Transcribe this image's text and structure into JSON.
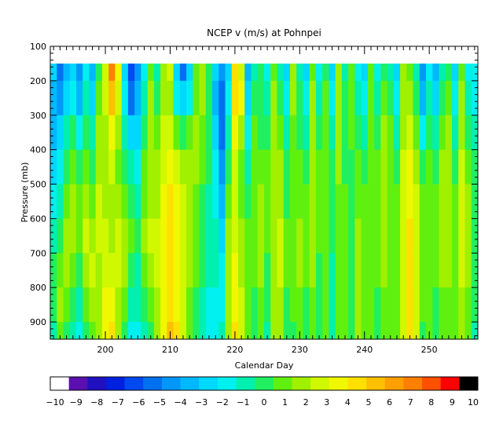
{
  "chart_data": {
    "type": "heatmap",
    "title": "NCEP v (m/s) at Pohnpei",
    "xlabel": "Calendar Day",
    "ylabel": "Pressure (mb)",
    "xlim": [
      191.5,
      257.5
    ],
    "ylim": [
      100,
      950
    ],
    "y_inverted": true,
    "data_top_pressure": 150,
    "x_ticks": [
      200,
      210,
      220,
      230,
      240,
      250
    ],
    "y_ticks": [
      100,
      200,
      300,
      400,
      500,
      600,
      700,
      800,
      900
    ],
    "grid": false,
    "colorbar": {
      "orientation": "horizontal",
      "placement": "bottom",
      "range": [
        -10,
        10
      ],
      "ticks": [
        -10,
        -9,
        -8,
        -7,
        -6,
        -5,
        -4,
        -3,
        -2,
        -1,
        0,
        1,
        2,
        3,
        4,
        5,
        6,
        7,
        8,
        9,
        10
      ],
      "colors": [
        "#ffffff",
        "#5a10b0",
        "#2010c0",
        "#0020e0",
        "#0048f0",
        "#0070f0",
        "#0098f8",
        "#00b8ff",
        "#00d8ff",
        "#00f0f0",
        "#00f0b0",
        "#20f060",
        "#60f010",
        "#a0f000",
        "#d0f800",
        "#f0f800",
        "#ffe000",
        "#ffc000",
        "#ffa000",
        "#ff8000",
        "#ff5000",
        "#ff0000",
        "#000000"
      ]
    },
    "columns": [
      {
        "day": 192,
        "v": [
          -3,
          -4,
          -4,
          -3,
          -2,
          -1,
          0,
          0,
          -1
        ]
      },
      {
        "day": 193,
        "v": [
          -6,
          -5,
          -3,
          -2,
          -1,
          0,
          1,
          2,
          1
        ]
      },
      {
        "day": 194,
        "v": [
          -4,
          -3,
          -1,
          0,
          1,
          2,
          2,
          1,
          0
        ]
      },
      {
        "day": 195,
        "v": [
          -3,
          -2,
          0,
          1,
          2,
          2,
          1,
          0,
          -1
        ]
      },
      {
        "day": 196,
        "v": [
          -5,
          -4,
          -2,
          0,
          1,
          1,
          0,
          -1,
          -2
        ]
      },
      {
        "day": 197,
        "v": [
          -2,
          -1,
          0,
          1,
          2,
          3,
          2,
          1,
          0
        ]
      },
      {
        "day": 198,
        "v": [
          -4,
          -3,
          -1,
          0,
          1,
          2,
          3,
          2,
          1
        ]
      },
      {
        "day": 199,
        "v": [
          0,
          1,
          2,
          2,
          3,
          3,
          2,
          2,
          2
        ]
      },
      {
        "day": 200,
        "v": [
          3,
          3,
          2,
          2,
          2,
          3,
          3,
          4,
          4
        ]
      },
      {
        "day": 201,
        "v": [
          8,
          6,
          4,
          3,
          2,
          2,
          3,
          4,
          5
        ]
      },
      {
        "day": 202,
        "v": [
          4,
          3,
          2,
          1,
          2,
          3,
          3,
          2,
          2
        ]
      },
      {
        "day": 203,
        "v": [
          -3,
          -2,
          -1,
          0,
          1,
          2,
          2,
          1,
          0
        ]
      },
      {
        "day": 204,
        "v": [
          -7,
          -6,
          -3,
          -1,
          0,
          1,
          0,
          -1,
          -2
        ]
      },
      {
        "day": 205,
        "v": [
          -5,
          -4,
          -3,
          -2,
          -1,
          0,
          -1,
          -1,
          -2
        ]
      },
      {
        "day": 206,
        "v": [
          -2,
          -1,
          0,
          1,
          1,
          2,
          1,
          0,
          -1
        ]
      },
      {
        "day": 207,
        "v": [
          1,
          2,
          2,
          2,
          2,
          3,
          2,
          1,
          0
        ]
      },
      {
        "day": 208,
        "v": [
          -1,
          0,
          1,
          2,
          2,
          3,
          3,
          2,
          2
        ]
      },
      {
        "day": 209,
        "v": [
          2,
          2,
          3,
          3,
          4,
          4,
          4,
          4,
          4
        ]
      },
      {
        "day": 210,
        "v": [
          3,
          2,
          3,
          4,
          5,
          5,
          5,
          5,
          6
        ]
      },
      {
        "day": 211,
        "v": [
          -3,
          -2,
          1,
          3,
          4,
          4,
          4,
          4,
          5
        ]
      },
      {
        "day": 212,
        "v": [
          -6,
          -3,
          0,
          2,
          3,
          3,
          3,
          3,
          3
        ]
      },
      {
        "day": 213,
        "v": [
          -3,
          -2,
          1,
          2,
          2,
          2,
          2,
          1,
          1
        ]
      },
      {
        "day": 214,
        "v": [
          1,
          1,
          2,
          2,
          1,
          1,
          1,
          0,
          0
        ]
      },
      {
        "day": 215,
        "v": [
          2,
          2,
          1,
          1,
          0,
          0,
          0,
          -1,
          -1
        ]
      },
      {
        "day": 216,
        "v": [
          0,
          0,
          0,
          0,
          -1,
          -1,
          -1,
          -2,
          -2
        ]
      },
      {
        "day": 217,
        "v": [
          -3,
          -4,
          -3,
          -2,
          -2,
          -1,
          -1,
          -2,
          -2
        ]
      },
      {
        "day": 218,
        "v": [
          -5,
          -6,
          -6,
          -5,
          -4,
          -3,
          -2,
          -2,
          -1
        ]
      },
      {
        "day": 219,
        "v": [
          -3,
          -2,
          -1,
          0,
          1,
          2,
          2,
          2,
          2
        ]
      },
      {
        "day": 220,
        "v": [
          5,
          5,
          4,
          3,
          3,
          3,
          4,
          4,
          5
        ]
      },
      {
        "day": 221,
        "v": [
          3,
          4,
          2,
          1,
          1,
          2,
          2,
          3,
          3
        ]
      },
      {
        "day": 222,
        "v": [
          -4,
          -3,
          -2,
          -1,
          0,
          1,
          1,
          1,
          1
        ]
      },
      {
        "day": 223,
        "v": [
          -1,
          0,
          1,
          1,
          1,
          1,
          1,
          0,
          0
        ]
      },
      {
        "day": 224,
        "v": [
          0,
          0,
          0,
          1,
          2,
          2,
          2,
          1,
          1
        ]
      },
      {
        "day": 225,
        "v": [
          -2,
          -1,
          0,
          1,
          1,
          1,
          0,
          0,
          -1
        ]
      },
      {
        "day": 226,
        "v": [
          1,
          2,
          2,
          2,
          2,
          2,
          2,
          2,
          2
        ]
      },
      {
        "day": 227,
        "v": [
          -1,
          0,
          1,
          2,
          2,
          3,
          3,
          2,
          2
        ]
      },
      {
        "day": 228,
        "v": [
          -3,
          -2,
          -1,
          0,
          0,
          1,
          1,
          0,
          0
        ]
      },
      {
        "day": 229,
        "v": [
          2,
          2,
          1,
          1,
          1,
          1,
          1,
          1,
          0
        ]
      },
      {
        "day": 230,
        "v": [
          -1,
          0,
          0,
          1,
          1,
          2,
          2,
          1,
          1
        ]
      },
      {
        "day": 231,
        "v": [
          -3,
          -2,
          -1,
          0,
          1,
          1,
          1,
          0,
          0
        ]
      },
      {
        "day": 232,
        "v": [
          1,
          2,
          2,
          2,
          2,
          2,
          2,
          1,
          1
        ]
      },
      {
        "day": 233,
        "v": [
          -2,
          -1,
          0,
          1,
          1,
          1,
          0,
          0,
          0
        ]
      },
      {
        "day": 234,
        "v": [
          0,
          1,
          1,
          1,
          1,
          1,
          1,
          1,
          1
        ]
      },
      {
        "day": 235,
        "v": [
          -3,
          -2,
          -1,
          0,
          0,
          0,
          -1,
          -1,
          -1
        ]
      },
      {
        "day": 236,
        "v": [
          2,
          2,
          2,
          2,
          1,
          1,
          1,
          1,
          1
        ]
      },
      {
        "day": 237,
        "v": [
          -1,
          0,
          0,
          0,
          1,
          1,
          1,
          1,
          1
        ]
      },
      {
        "day": 238,
        "v": [
          1,
          1,
          1,
          0,
          0,
          0,
          0,
          0,
          0
        ]
      },
      {
        "day": 239,
        "v": [
          -2,
          -1,
          0,
          1,
          1,
          2,
          2,
          2,
          2
        ]
      },
      {
        "day": 240,
        "v": [
          -3,
          -2,
          -1,
          0,
          1,
          1,
          1,
          1,
          1
        ]
      },
      {
        "day": 241,
        "v": [
          1,
          1,
          1,
          1,
          1,
          1,
          1,
          1,
          1
        ]
      },
      {
        "day": 242,
        "v": [
          -2,
          -1,
          0,
          1,
          1,
          1,
          1,
          0,
          0
        ]
      },
      {
        "day": 243,
        "v": [
          0,
          1,
          2,
          2,
          2,
          2,
          2,
          1,
          1
        ]
      },
      {
        "day": 244,
        "v": [
          -1,
          0,
          1,
          1,
          1,
          1,
          1,
          1,
          1
        ]
      },
      {
        "day": 245,
        "v": [
          -3,
          -2,
          -1,
          0,
          1,
          1,
          1,
          1,
          1
        ]
      },
      {
        "day": 246,
        "v": [
          2,
          2,
          2,
          3,
          3,
          3,
          3,
          3,
          3
        ]
      },
      {
        "day": 247,
        "v": [
          1,
          2,
          3,
          4,
          4,
          5,
          5,
          5,
          5
        ]
      },
      {
        "day": 248,
        "v": [
          -1,
          0,
          1,
          2,
          3,
          3,
          3,
          3,
          3
        ]
      },
      {
        "day": 249,
        "v": [
          -5,
          -4,
          -2,
          0,
          1,
          1,
          1,
          1,
          0
        ]
      },
      {
        "day": 250,
        "v": [
          -2,
          -1,
          0,
          1,
          1,
          1,
          1,
          1,
          1
        ]
      },
      {
        "day": 251,
        "v": [
          -4,
          -3,
          -1,
          0,
          1,
          1,
          1,
          0,
          0
        ]
      },
      {
        "day": 252,
        "v": [
          -1,
          0,
          1,
          2,
          2,
          2,
          2,
          1,
          1
        ]
      },
      {
        "day": 253,
        "v": [
          0,
          1,
          2,
          2,
          2,
          2,
          2,
          1,
          1
        ]
      },
      {
        "day": 254,
        "v": [
          -3,
          -2,
          -1,
          0,
          1,
          1,
          1,
          1,
          1
        ]
      },
      {
        "day": 255,
        "v": [
          1,
          2,
          2,
          3,
          3,
          3,
          3,
          2,
          2
        ]
      },
      {
        "day": 256,
        "v": [
          -2,
          -1,
          0,
          1,
          2,
          2,
          2,
          1,
          1
        ]
      },
      {
        "day": 257,
        "v": [
          -2,
          -2,
          -1,
          0,
          0,
          0,
          0,
          0,
          -1
        ]
      }
    ],
    "levels_mb": [
      150,
      250,
      350,
      450,
      550,
      650,
      750,
      850,
      950
    ]
  }
}
